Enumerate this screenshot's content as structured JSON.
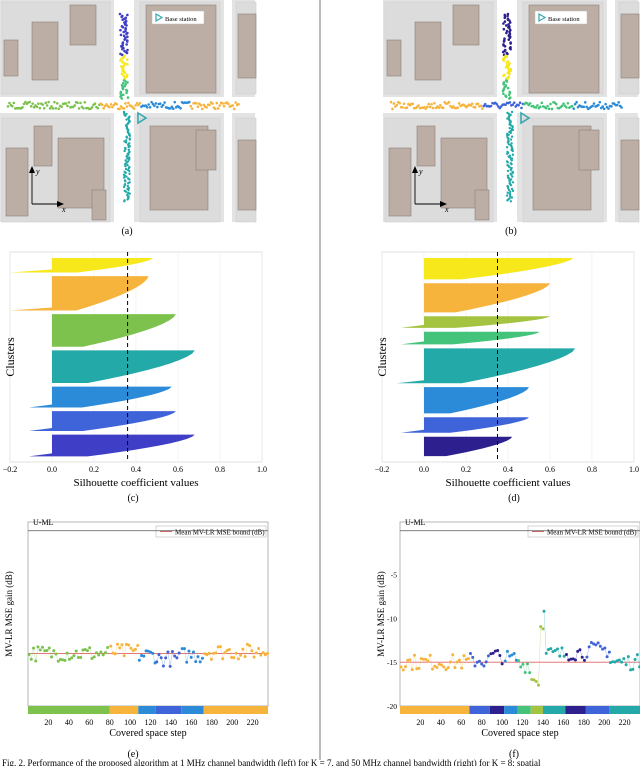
{
  "legend_base_station": "Base station",
  "axis_y": "y",
  "axis_x": "x",
  "subfig_labels": [
    "(a)",
    "(b)",
    "(c)",
    "(d)",
    "(e)",
    "(f)"
  ],
  "caption": "Fig. 2.  Performance of the proposed algorithm at 1 MHz channel bandwidth (left) for K = 7, and 50 MHz channel bandwidth (right) for K = 8; spatial",
  "colors": {
    "map_bg": "#e3e3e3",
    "building": "#bcaea4",
    "road": "#ffffff",
    "bs_marker": "#35a8b0",
    "ref_line": "#e06464",
    "cluster_palette": [
      "#f6e81a",
      "#f6b43c",
      "#f8d54a",
      "#7cc24c",
      "#44c47a",
      "#22a9a8",
      "#2b8bd8",
      "#3f63d9",
      "#3f3ec6",
      "#2d1f8d"
    ]
  },
  "chart_data": [
    {
      "id": "c",
      "type": "bar",
      "xlabel": "Silhouette coefficient values",
      "ylabel": "Clusters",
      "xlim": [
        -0.2,
        1.0
      ],
      "xticks": [
        "−0.2",
        "0.0",
        "0.2",
        "0.4",
        "0.6",
        "0.8",
        "1.0"
      ],
      "mean_silhouette": 0.36,
      "clusters": [
        {
          "color": "#f6e81a",
          "max": 0.48,
          "min": -0.2,
          "size": 16
        },
        {
          "color": "#f6b43c",
          "max": 0.46,
          "min": -0.2,
          "size": 38
        },
        {
          "color": "#7cc24c",
          "max": 0.59,
          "min": 0.0,
          "size": 36
        },
        {
          "color": "#22a9a8",
          "max": 0.68,
          "min": 0.0,
          "size": 36
        },
        {
          "color": "#2b8bd8",
          "max": 0.57,
          "min": -0.11,
          "size": 23
        },
        {
          "color": "#3f63d9",
          "max": 0.59,
          "min": -0.11,
          "size": 22
        },
        {
          "color": "#3f3ec6",
          "max": 0.68,
          "min": -0.11,
          "size": 24
        }
      ]
    },
    {
      "id": "d",
      "type": "bar",
      "xlabel": "Silhouette coefficient values",
      "ylabel": "Clusters",
      "xlim": [
        -0.2,
        1.0
      ],
      "xticks": [
        "−0.2",
        "0.0",
        "0.2",
        "0.4",
        "0.6",
        "0.8",
        "1.0"
      ],
      "mean_silhouette": 0.35,
      "clusters": [
        {
          "color": "#f6e81a",
          "max": 0.71,
          "min": 0.0,
          "size": 22
        },
        {
          "color": "#f6b43c",
          "max": 0.6,
          "min": 0.0,
          "size": 30
        },
        {
          "color": "#a3c341",
          "max": 0.6,
          "min": -0.11,
          "size": 12
        },
        {
          "color": "#44c47a",
          "max": 0.55,
          "min": -0.11,
          "size": 13
        },
        {
          "color": "#22a9a8",
          "max": 0.72,
          "min": -0.13,
          "size": 36
        },
        {
          "color": "#2b8bd8",
          "max": 0.5,
          "min": 0.0,
          "size": 27
        },
        {
          "color": "#3f63d9",
          "max": 0.5,
          "min": -0.11,
          "size": 16
        },
        {
          "color": "#2d1f8d",
          "max": 0.42,
          "min": 0.0,
          "size": 20
        }
      ]
    },
    {
      "id": "e",
      "type": "scatter",
      "xlabel": "Covered space step",
      "ylabel": "MV-LR MSE gain (dB)",
      "legend": "Mean MV-LR MSE bound (dB)",
      "reference_label": "U-ML",
      "xlim": [
        0,
        235
      ],
      "xticks": [
        20,
        40,
        60,
        80,
        100,
        120,
        140,
        160,
        180,
        200,
        220
      ],
      "ylim": [
        -20,
        1
      ],
      "yticks": [],
      "reference_y": 0,
      "bound_y": -14.0,
      "segments": [
        {
          "start": 0,
          "end": 80,
          "color": "#7cc24c",
          "mean": -14.0
        },
        {
          "start": 80,
          "end": 108,
          "color": "#f6b43c",
          "mean": -13.8
        },
        {
          "start": 108,
          "end": 125,
          "color": "#2b8bd8",
          "mean": -14.2
        },
        {
          "start": 125,
          "end": 150,
          "color": "#3f63d9",
          "mean": -14.6
        },
        {
          "start": 150,
          "end": 172,
          "color": "#2b8bd8",
          "mean": -14.2
        },
        {
          "start": 172,
          "end": 235,
          "color": "#f6b43c",
          "mean": -13.8
        }
      ]
    },
    {
      "id": "f",
      "type": "scatter",
      "xlabel": "Covered space step",
      "ylabel": "MV-LR MSE gain (dB)",
      "legend": "Mean MV-LR MSE bound (dB)",
      "reference_label": "U-ML",
      "xlim": [
        0,
        235
      ],
      "xticks": [
        20,
        40,
        60,
        80,
        100,
        120,
        140,
        160,
        180,
        200,
        220
      ],
      "ylim": [
        -20,
        1
      ],
      "yticks": [
        -5,
        -10,
        -15,
        -20
      ],
      "reference_y": 0,
      "bound_y": -15.0,
      "segments": [
        {
          "start": 0,
          "end": 68,
          "color": "#f6b43c",
          "mean": -15.0
        },
        {
          "start": 68,
          "end": 88,
          "color": "#3f63d9",
          "mean": -14.8
        },
        {
          "start": 88,
          "end": 102,
          "color": "#2d1f8d",
          "mean": -14.3
        },
        {
          "start": 102,
          "end": 115,
          "color": "#2b8bd8",
          "mean": -14.6
        },
        {
          "start": 115,
          "end": 128,
          "color": "#44c47a",
          "mean": -15.3
        },
        {
          "start": 128,
          "end": 140,
          "color": "#a3c341",
          "mean": -17.0
        },
        {
          "start": 140,
          "end": 162,
          "color": "#22a9a8",
          "mean": -14.1
        },
        {
          "start": 162,
          "end": 182,
          "color": "#2d1f8d",
          "mean": -13.9
        },
        {
          "start": 182,
          "end": 205,
          "color": "#3f63d9",
          "mean": -13.6
        },
        {
          "start": 205,
          "end": 235,
          "color": "#22a9a8",
          "mean": -15.0
        }
      ]
    }
  ]
}
